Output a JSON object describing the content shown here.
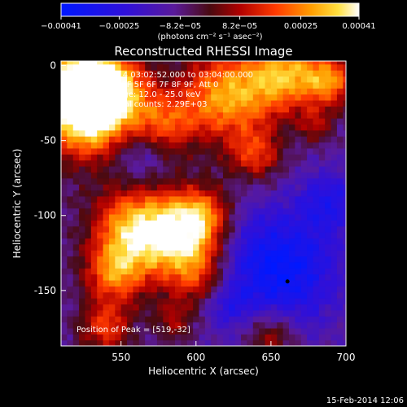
{
  "colorbar": {
    "min": -0.00041,
    "max": 0.00041,
    "tick_labels": [
      "−0.00041",
      "−0.00025",
      "−8.2e−05",
      "8.2e−05",
      "0.00025",
      "0.00041"
    ],
    "unit_label": "(photons cm⁻² s⁻¹ asec⁻²)"
  },
  "chart_data": {
    "type": "heatmap",
    "title": "Reconstructed RHESSI Image",
    "xlabel": "Heliocentric X (arcsec)",
    "ylabel": "Heliocentric Y (arcsec)",
    "xlim": [
      510,
      700
    ],
    "ylim": [
      -187,
      3
    ],
    "x_ticks": [
      550,
      600,
      650,
      700
    ],
    "y_ticks": [
      0,
      -50,
      -100,
      -150
    ],
    "grid": false,
    "info_lines": [
      "15-Feb-2014 03:02:52.000 to 03:04:00.000",
      "Detectors: 3F 5F 6F 7F 8F 9F, Att 0",
      "Energy Range: 12.0 - 25.0 keV",
      "Clean     Total counts: 2.29E+03"
    ],
    "peak_label": "Position of Peak = [519,-32]",
    "peak": {
      "x": 519,
      "y": -32
    },
    "minimum_marker": {
      "x": 661,
      "y": -144
    },
    "bright_regions": [
      {
        "x": 527,
        "y": -30,
        "sigma": 22,
        "amp": 1.0
      },
      {
        "x": 520,
        "y": -10,
        "sigma": 18,
        "amp": 0.7
      },
      {
        "x": 545,
        "y": -15,
        "sigma": 18,
        "amp": 0.55
      },
      {
        "x": 580,
        "y": -38,
        "sigma": 14,
        "amp": 0.45
      },
      {
        "x": 560,
        "y": -110,
        "sigma": 20,
        "amp": 0.85
      },
      {
        "x": 545,
        "y": -140,
        "sigma": 14,
        "amp": 0.55
      },
      {
        "x": 590,
        "y": -115,
        "sigma": 18,
        "amp": 0.6
      },
      {
        "x": 603,
        "y": -100,
        "sigma": 14,
        "amp": 0.6
      },
      {
        "x": 600,
        "y": -140,
        "sigma": 14,
        "amp": 0.45
      },
      {
        "x": 620,
        "y": -20,
        "sigma": 22,
        "amp": 0.75
      },
      {
        "x": 660,
        "y": -5,
        "sigma": 18,
        "amp": 0.7
      },
      {
        "x": 690,
        "y": -10,
        "sigma": 12,
        "amp": 0.6
      },
      {
        "x": 640,
        "y": -60,
        "sigma": 12,
        "amp": 0.45
      },
      {
        "x": 680,
        "y": -40,
        "sigma": 8,
        "amp": 0.3
      },
      {
        "x": 540,
        "y": -175,
        "sigma": 12,
        "amp": 0.5
      },
      {
        "x": 650,
        "y": -180,
        "sigma": 12,
        "amp": 0.4
      },
      {
        "x": 585,
        "y": -170,
        "sigma": 10,
        "amp": 0.3
      }
    ],
    "dark_regions": [
      {
        "x": 655,
        "y": -135,
        "sigma": 28,
        "amp": 1.0
      },
      {
        "x": 560,
        "y": -60,
        "sigma": 12,
        "amp": 0.4
      },
      {
        "x": 690,
        "y": -90,
        "sigma": 14,
        "amp": 0.55
      },
      {
        "x": 620,
        "y": -160,
        "sigma": 10,
        "amp": 0.35
      }
    ]
  },
  "footer": {
    "timestamp": "15-Feb-2014 12:06"
  }
}
